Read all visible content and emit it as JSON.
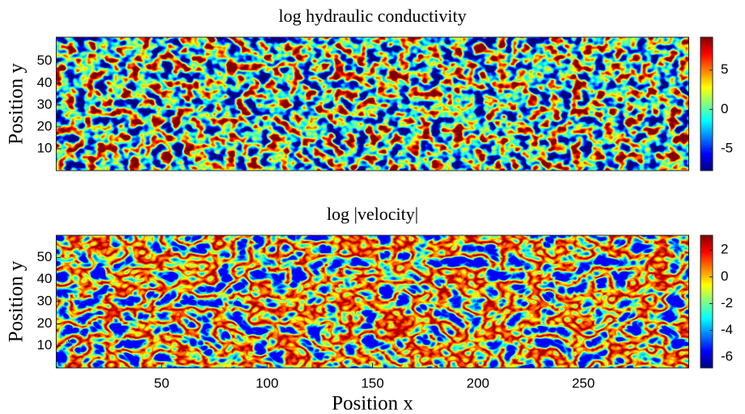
{
  "chart_data": [
    {
      "type": "heatmap",
      "title": "log hydraulic conductivity",
      "ylabel": "Position y",
      "xlim": [
        0,
        300
      ],
      "ylim": [
        0,
        61
      ],
      "yticks": [
        10,
        20,
        30,
        40,
        50
      ],
      "colormap": "jet",
      "clim": [
        -7.8,
        9.2
      ],
      "cticks": [
        -5,
        0,
        5
      ]
    },
    {
      "type": "heatmap",
      "title": "log |velocity|",
      "ylabel": "Position y",
      "xlabel": "Position x",
      "xlim": [
        0,
        300
      ],
      "xticks": [
        50,
        100,
        150,
        200,
        250
      ],
      "ylim": [
        0,
        60
      ],
      "yticks": [
        10,
        20,
        30,
        40,
        50
      ],
      "colormap": "jet",
      "clim": [
        -6.8,
        3.1
      ],
      "cticks": [
        -6,
        -4,
        -2,
        0,
        2
      ]
    }
  ]
}
